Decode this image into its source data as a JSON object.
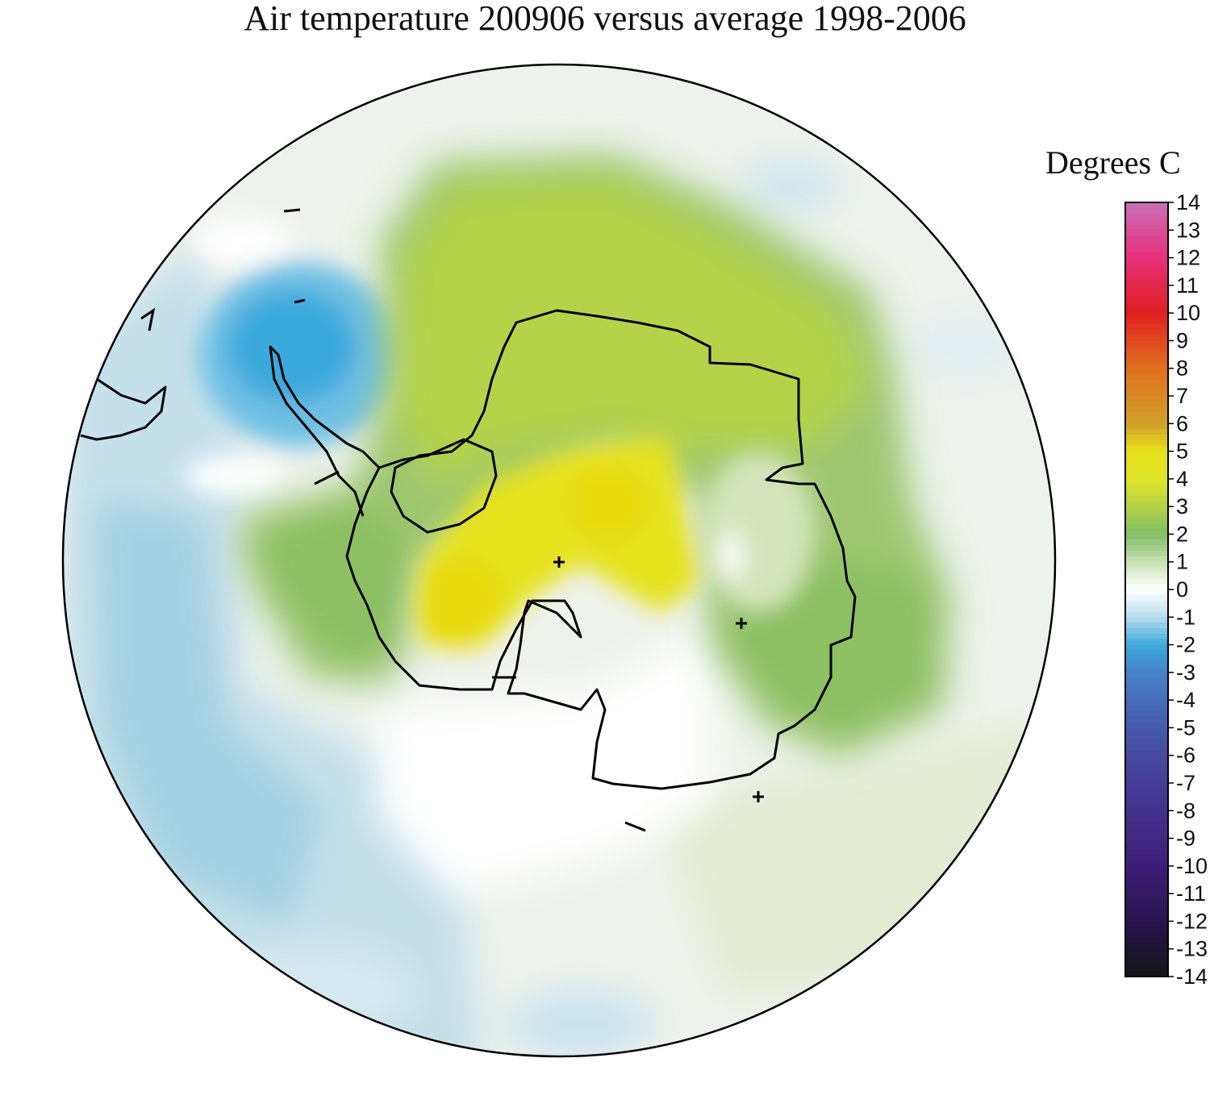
{
  "title": "Air temperature 200906 versus average 1998-2006",
  "legend": {
    "title": "Degrees C",
    "ticks": [
      "14",
      "13",
      "12",
      "11",
      "10",
      "9",
      "8",
      "7",
      "6",
      "5",
      "4",
      "3",
      "2",
      "1",
      "0",
      "-1",
      "-2",
      "-3",
      "-4",
      "-5",
      "-6",
      "-7",
      "-8",
      "-9",
      "-10",
      "-11",
      "-12",
      "-13",
      "-14"
    ]
  },
  "map_data": {
    "type": "polar-stereographic anomaly map",
    "region": "Antarctica / Southern Ocean",
    "value_range": [
      -14,
      14
    ],
    "colors": {
      "deep_negative": "#1a1a1a",
      "negative_blue": "#3aa9dc",
      "light_blue": "#c8e3ee",
      "zero": "#ffffff",
      "light_green": "#dde9c8",
      "green": "#8cc064",
      "yellow_green": "#bcd43c",
      "yellow": "#e6e21c",
      "orange": "#e08020",
      "red": "#e02020",
      "magenta": "#e0307a",
      "pink": "#c870b8"
    }
  }
}
